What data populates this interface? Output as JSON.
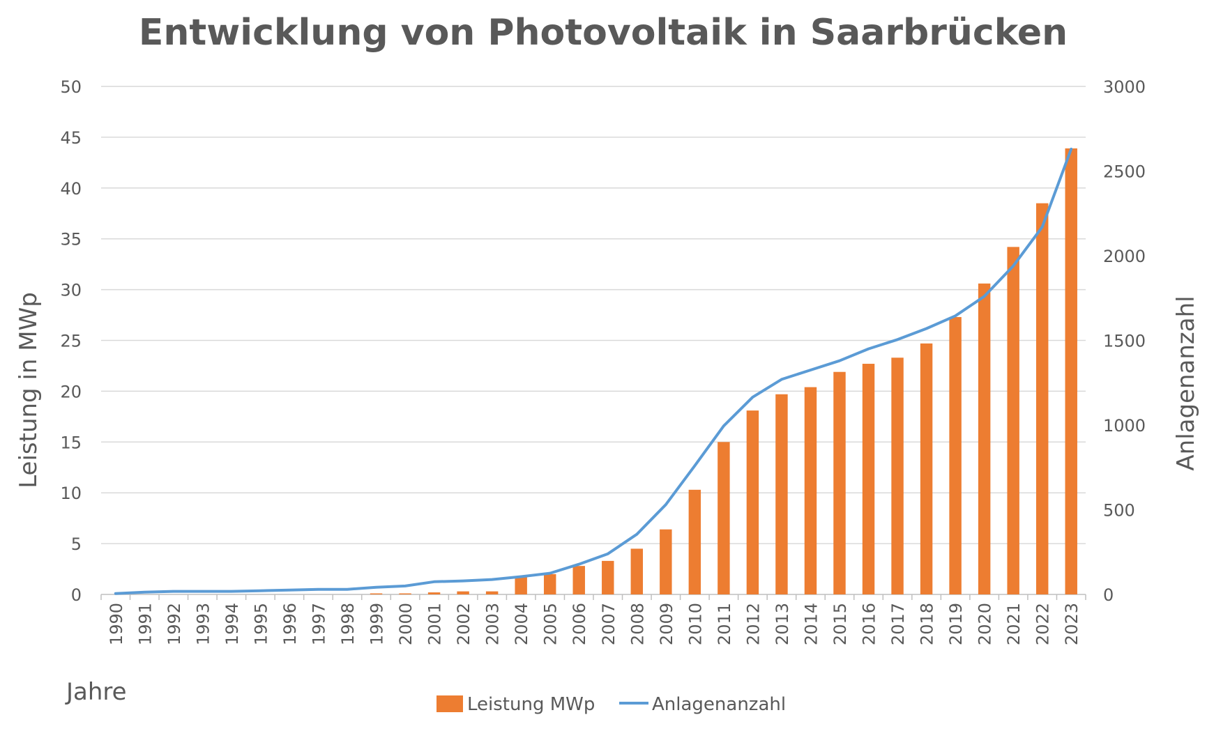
{
  "chart_data": {
    "type": "bar+line",
    "title": "Entwicklung von Photovoltaik in Saarbrücken",
    "xlabel": "Jahre",
    "ylabel": "Leistung in MWp",
    "y2label": "Anlagenanzahl",
    "ylim": [
      0,
      50
    ],
    "y2lim": [
      0,
      3000
    ],
    "yticks": [
      "0",
      "5",
      "10",
      "15",
      "20",
      "25",
      "30",
      "35",
      "40",
      "45",
      "50"
    ],
    "y2ticks": [
      "0",
      "500",
      "1000",
      "1500",
      "2000",
      "2500",
      "3000"
    ],
    "categories": [
      "1990",
      "1991",
      "1992",
      "1993",
      "1994",
      "1995",
      "1996",
      "1997",
      "1998",
      "1999",
      "2000",
      "2001",
      "2002",
      "2003",
      "2004",
      "2005",
      "2006",
      "2007",
      "2008",
      "2009",
      "2010",
      "2011",
      "2012",
      "2013",
      "2014",
      "2015",
      "2016",
      "2017",
      "2018",
      "2019",
      "2020",
      "2021",
      "2022",
      "2023"
    ],
    "series": [
      {
        "name": "Leistung MWp",
        "type": "bar",
        "axis": "left",
        "color": "#ED7D31",
        "values": [
          0,
          0,
          0,
          0,
          0,
          0,
          0,
          0,
          0,
          0.1,
          0.1,
          0.2,
          0.3,
          0.3,
          1.7,
          2.0,
          2.8,
          3.3,
          4.5,
          6.4,
          10.3,
          15.0,
          18.1,
          19.7,
          20.4,
          21.9,
          22.7,
          23.3,
          24.7,
          27.3,
          30.6,
          34.2,
          38.5,
          43.9
        ]
      },
      {
        "name": "Anlagenanzahl",
        "type": "line",
        "axis": "right",
        "color": "#5B9BD5",
        "values": [
          5,
          13,
          18,
          18,
          18,
          22,
          26,
          30,
          30,
          42,
          50,
          75,
          80,
          88,
          105,
          125,
          178,
          240,
          355,
          530,
          760,
          995,
          1165,
          1270,
          1325,
          1380,
          1450,
          1505,
          1570,
          1645,
          1760,
          1940,
          2170,
          2630
        ]
      }
    ],
    "legend": "bottom"
  }
}
